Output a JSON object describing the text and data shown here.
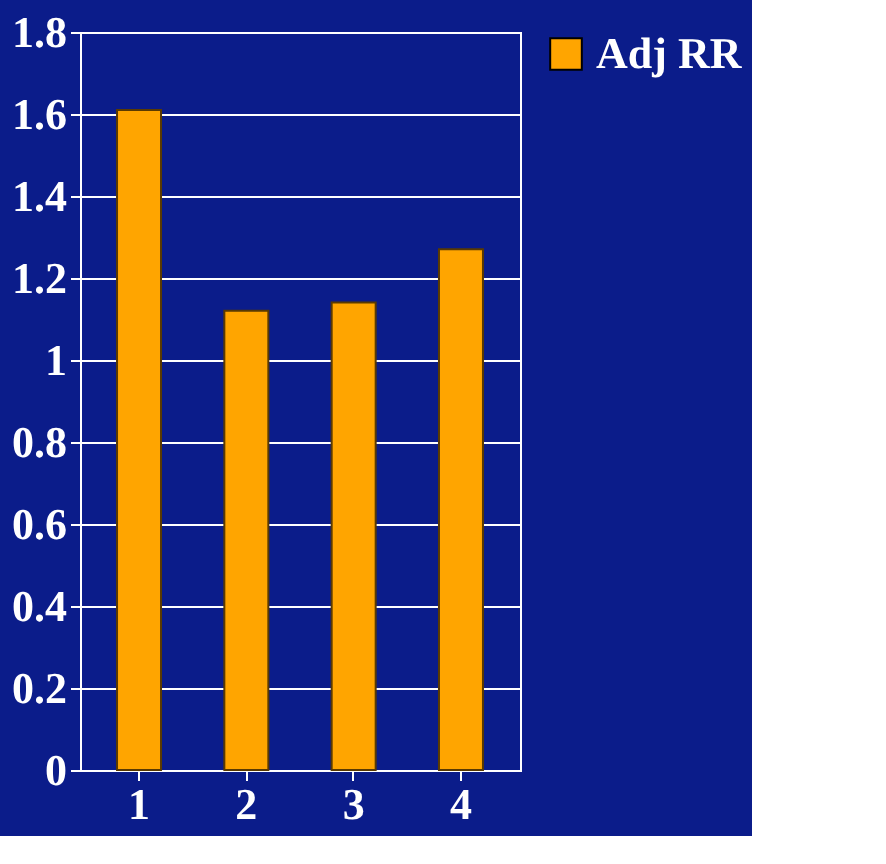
{
  "chart_data": {
    "type": "bar",
    "categories": [
      "1",
      "2",
      "3",
      "4"
    ],
    "series": [
      {
        "name": "Adj RR",
        "color": "#ffa500",
        "values": [
          1.61,
          1.12,
          1.14,
          1.27
        ]
      }
    ],
    "ylim": [
      0,
      1.8
    ],
    "yticks": [
      0,
      0.2,
      0.4,
      0.6,
      0.8,
      1,
      1.2,
      1.4,
      1.6,
      1.8
    ],
    "grid": "y",
    "legend": "right"
  }
}
